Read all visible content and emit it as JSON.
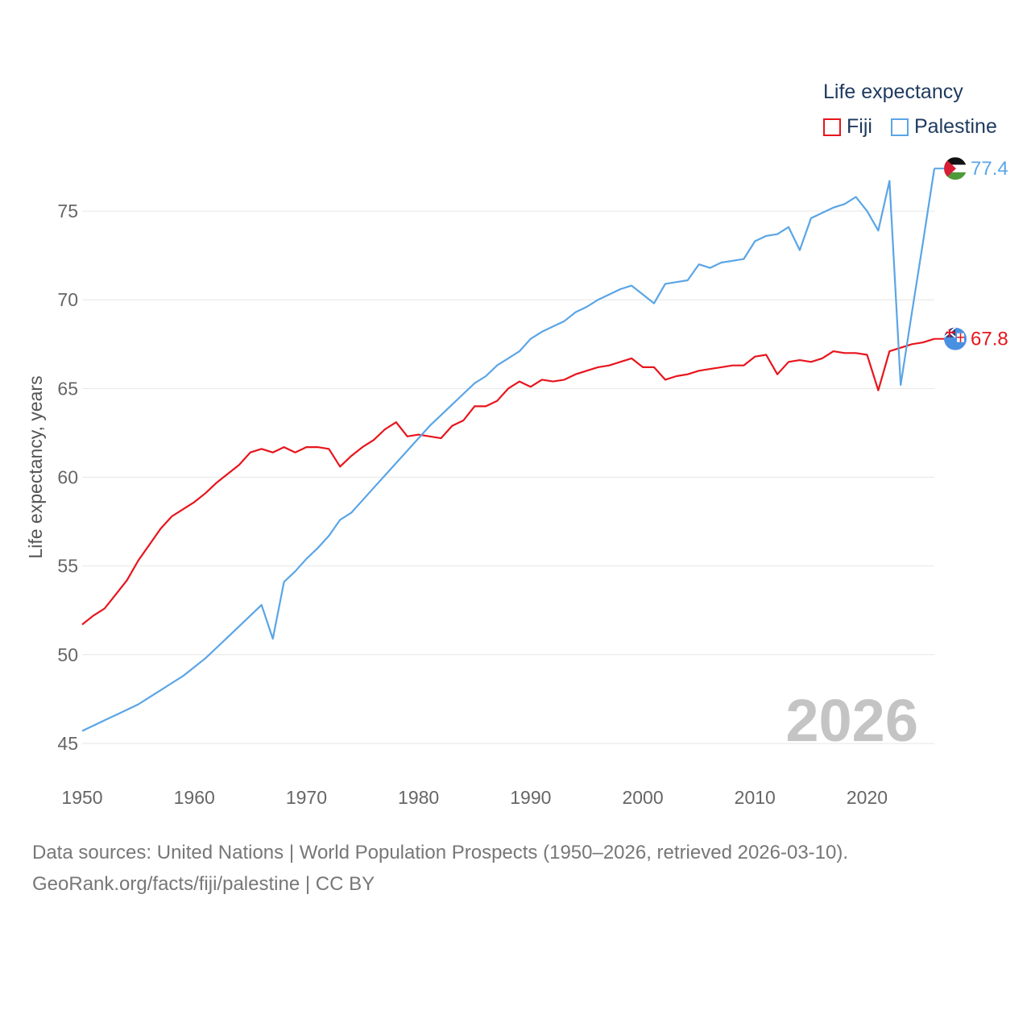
{
  "legend": {
    "title": "Life expectancy",
    "items": [
      {
        "label": "Fiji",
        "color": "#e8141c"
      },
      {
        "label": "Palestine",
        "color": "#5aa5e6"
      }
    ]
  },
  "footer": {
    "line1": "Data sources: United Nations | World Population Prospects (1950–2026, retrieved 2026-03-10).",
    "line2": "GeoRank.org/facts/fiji/palestine | CC BY"
  },
  "chart_data": {
    "type": "line",
    "title": "Life expectancy",
    "ylabel": "Life expectancy, years",
    "xlabel": "",
    "year_watermark": "2026",
    "xlim": [
      1950,
      2026
    ],
    "ylim": [
      43,
      78
    ],
    "x_ticks": [
      1950,
      1960,
      1970,
      1980,
      1990,
      2000,
      2010,
      2020
    ],
    "y_ticks": [
      45,
      50,
      55,
      60,
      65,
      70,
      75
    ],
    "grid": true,
    "series": [
      {
        "name": "Fiji",
        "color": "#e8141c",
        "end_label": "67.8",
        "flag_icon": "fiji-flag-icon",
        "x": [
          1950,
          1951,
          1952,
          1953,
          1954,
          1955,
          1956,
          1957,
          1958,
          1959,
          1960,
          1961,
          1962,
          1963,
          1964,
          1965,
          1966,
          1967,
          1968,
          1969,
          1970,
          1971,
          1972,
          1973,
          1974,
          1975,
          1976,
          1977,
          1978,
          1979,
          1980,
          1981,
          1982,
          1983,
          1984,
          1985,
          1986,
          1987,
          1988,
          1989,
          1990,
          1991,
          1992,
          1993,
          1994,
          1995,
          1996,
          1997,
          1998,
          1999,
          2000,
          2001,
          2002,
          2003,
          2004,
          2005,
          2006,
          2007,
          2008,
          2009,
          2010,
          2011,
          2012,
          2013,
          2014,
          2015,
          2016,
          2017,
          2018,
          2019,
          2020,
          2021,
          2022,
          2023,
          2024,
          2025,
          2026
        ],
        "values": [
          51.7,
          52.2,
          52.6,
          53.4,
          54.2,
          55.3,
          56.2,
          57.1,
          57.8,
          58.2,
          58.6,
          59.1,
          59.7,
          60.2,
          60.7,
          61.4,
          61.6,
          61.4,
          61.7,
          61.4,
          61.7,
          61.7,
          61.6,
          60.6,
          61.2,
          61.7,
          62.1,
          62.7,
          63.1,
          62.3,
          62.4,
          62.3,
          62.2,
          62.9,
          63.2,
          64.0,
          64.0,
          64.3,
          65.0,
          65.4,
          65.1,
          65.5,
          65.4,
          65.5,
          65.8,
          66.0,
          66.2,
          66.3,
          66.5,
          66.7,
          66.2,
          66.2,
          65.5,
          65.7,
          65.8,
          66.0,
          66.1,
          66.2,
          66.3,
          66.3,
          66.8,
          66.9,
          65.8,
          66.5,
          66.6,
          66.5,
          66.7,
          67.1,
          67.0,
          67.0,
          66.9,
          64.9,
          67.1,
          67.3,
          67.5,
          67.6,
          67.8
        ]
      },
      {
        "name": "Palestine",
        "color": "#5aa5e6",
        "end_label": "77.4",
        "flag_icon": "palestine-flag-icon",
        "x": [
          1950,
          1951,
          1952,
          1953,
          1954,
          1955,
          1956,
          1957,
          1958,
          1959,
          1960,
          1961,
          1962,
          1963,
          1964,
          1965,
          1966,
          1967,
          1968,
          1969,
          1970,
          1971,
          1972,
          1973,
          1974,
          1975,
          1976,
          1977,
          1978,
          1979,
          1980,
          1981,
          1982,
          1983,
          1984,
          1985,
          1986,
          1987,
          1988,
          1989,
          1990,
          1991,
          1992,
          1993,
          1994,
          1995,
          1996,
          1997,
          1998,
          1999,
          2000,
          2001,
          2002,
          2003,
          2004,
          2005,
          2006,
          2007,
          2008,
          2009,
          2010,
          2011,
          2012,
          2013,
          2014,
          2015,
          2016,
          2017,
          2018,
          2019,
          2020,
          2021,
          2022,
          2023,
          2024,
          2025,
          2026
        ],
        "values": [
          45.7,
          46.0,
          46.3,
          46.6,
          46.9,
          47.2,
          47.6,
          48.0,
          48.4,
          48.8,
          49.3,
          49.8,
          50.4,
          51.0,
          51.6,
          52.2,
          52.8,
          50.9,
          54.1,
          54.7,
          55.4,
          56.0,
          56.7,
          57.6,
          58.0,
          58.7,
          59.4,
          60.1,
          60.8,
          61.5,
          62.2,
          62.9,
          63.5,
          64.1,
          64.7,
          65.3,
          65.7,
          66.3,
          66.7,
          67.1,
          67.8,
          68.2,
          68.5,
          68.8,
          69.3,
          69.6,
          70.0,
          70.3,
          70.6,
          70.8,
          70.3,
          69.8,
          70.9,
          71.0,
          71.1,
          72.0,
          71.8,
          72.1,
          72.2,
          72.3,
          73.3,
          73.6,
          73.7,
          74.1,
          72.8,
          74.6,
          74.9,
          75.2,
          75.4,
          75.8,
          75.0,
          73.9,
          76.7,
          65.2,
          69.3,
          73.3,
          77.4
        ]
      }
    ]
  }
}
